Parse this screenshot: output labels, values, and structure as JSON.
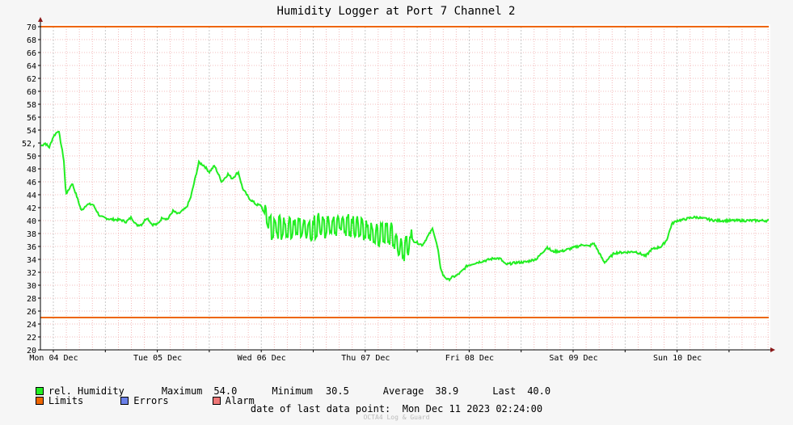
{
  "chart_data": {
    "type": "line",
    "title": "Humidity Logger at Port 7 Channel 2",
    "ylim": [
      20,
      70
    ],
    "y_ticks": [
      20,
      22,
      24,
      26,
      28,
      30,
      32,
      34,
      36,
      38,
      40,
      42,
      44,
      46,
      48,
      50,
      52,
      54,
      56,
      58,
      60,
      62,
      64,
      66,
      68,
      70
    ],
    "y_tick_labels": [
      "20",
      "22",
      "24",
      "26",
      "28",
      "30",
      "32",
      "34",
      "36",
      "38",
      "40",
      "42",
      "44",
      "46",
      "48",
      "50",
      "52,",
      "54",
      "56",
      "58",
      "60",
      "62",
      "64",
      "66",
      "68",
      "70"
    ],
    "x_range_days": [
      0,
      7
    ],
    "x_tick_labels": [
      "Mon 04 Dec",
      "Tue 05 Dec",
      "Wed 06 Dec",
      "Thu 07 Dec",
      "Fri 08 Dec",
      "Sat 09 Dec",
      "Sun 10 Dec"
    ],
    "grid": true,
    "limits": {
      "upper": 70,
      "lower": 25
    },
    "series": [
      {
        "name": "rel. Humidity",
        "x": [
          -0.32,
          -0.28,
          -0.22,
          -0.18,
          -0.12,
          -0.08,
          -0.04,
          0.0,
          0.05,
          0.1,
          0.12,
          0.14,
          0.18,
          0.22,
          0.27,
          0.32,
          0.38,
          0.45,
          0.55,
          0.65,
          0.7,
          0.75,
          0.8,
          0.85,
          0.9,
          0.95,
          1.0,
          1.05,
          1.1,
          1.15,
          1.2,
          1.28,
          1.32,
          1.4,
          1.45,
          1.5,
          1.55,
          1.62,
          1.68,
          1.72,
          1.78,
          1.82,
          1.88,
          1.95,
          2.0,
          2.03,
          2.06,
          2.1,
          2.15,
          2.25,
          2.35,
          2.45,
          2.55,
          2.65,
          2.75,
          2.85,
          2.95,
          3.05,
          3.15,
          3.25,
          3.35,
          3.45,
          3.55,
          3.65,
          3.7,
          3.72,
          3.75,
          3.8,
          3.83,
          3.85,
          3.88,
          3.92,
          3.98,
          4.05,
          4.15,
          4.25,
          4.3,
          4.35,
          4.45,
          4.55,
          4.65,
          4.75,
          4.8,
          4.9,
          5.0,
          5.1,
          5.15,
          5.2,
          5.3,
          5.4,
          5.6,
          5.7,
          5.75,
          5.85,
          5.9,
          5.95,
          6.0,
          6.05,
          6.1,
          6.15,
          6.2,
          6.25,
          6.28,
          6.32,
          6.38,
          6.42,
          6.48
        ],
        "values": [
          51.0,
          50.8,
          49.0,
          51.0,
          51.5,
          52.0,
          51.3,
          53.0,
          54.0,
          49.5,
          44.2,
          44.5,
          45.8,
          44.0,
          41.5,
          42.5,
          42.5,
          40.6,
          40.2,
          40.1,
          39.8,
          40.5,
          39.3,
          39.4,
          40.5,
          39.4,
          39.4,
          40.5,
          40.2,
          41.5,
          41.0,
          42.0,
          43.5,
          49.0,
          48.5,
          47.5,
          48.5,
          46.0,
          47.2,
          46.5,
          47.5,
          45.0,
          43.5,
          42.5,
          42.3,
          41.0,
          40.5,
          38.5,
          39.0,
          38.3,
          39.0,
          38.5,
          39.2,
          38.9,
          39.6,
          39.0,
          38.7,
          38.0,
          37.5,
          37.9,
          35.0,
          37.0,
          36.2,
          38.8,
          35.5,
          33.0,
          31.5,
          30.8,
          31.2,
          31.3,
          31.5,
          32.0,
          33.0,
          33.4,
          33.8,
          34.2,
          34.1,
          33.2,
          33.5,
          33.6,
          34.1,
          35.9,
          35.2,
          35.3,
          35.8,
          36.3,
          36.0,
          36.5,
          33.5,
          35.0,
          35.2,
          34.5,
          35.5,
          36.0,
          37.0,
          39.5,
          40.0,
          40.1,
          40.3,
          40.5,
          40.5,
          40.3,
          40.3,
          40.1,
          40.0,
          40.0,
          40.0
        ],
        "noisy_from": 2.03,
        "noisy_to": 3.45
      }
    ]
  },
  "legend": {
    "series_label": "rel. Humidity",
    "max_label": "Maximum",
    "max_value": "54.0",
    "min_label": "Minimum",
    "min_value": "30.5",
    "avg_label": "Average",
    "avg_value": "38.9",
    "last_label": "Last",
    "last_value": "40.0",
    "limits_label": "Limits",
    "errors_label": "Errors",
    "alarm_label": "Alarm"
  },
  "footer": {
    "date_label": "date of last data point:",
    "date_value": "Mon Dec 11 2023 02:24:00",
    "watermark": "OCTA4 Log & Guard"
  },
  "colors": {
    "series": "#22ee22",
    "limits": "#ee6600",
    "errors": "#6b80e8",
    "alarm": "#ee7777",
    "grid_minor": "#f0a8a8",
    "grid_major": "#bbbbbb",
    "axis_arrow": "#8b1a1a"
  }
}
